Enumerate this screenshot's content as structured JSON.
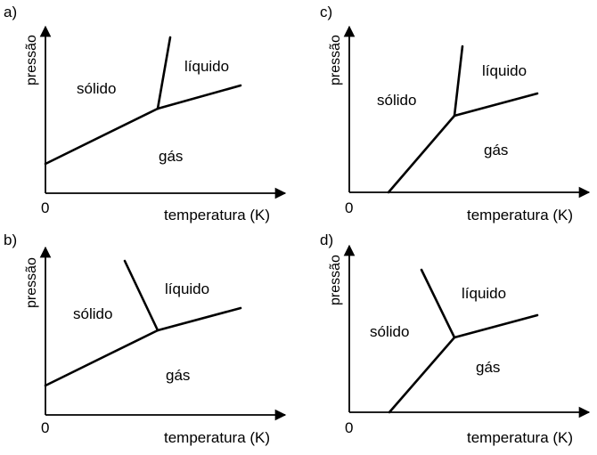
{
  "panels": [
    {
      "letter": "a)",
      "y_axis_label": "pressão",
      "x_axis_label": "temperatura (K)",
      "origin_label": "0",
      "regions": {
        "solid": "sólido",
        "liquid": "líquido",
        "gas": "gás"
      }
    },
    {
      "letter": "b)",
      "y_axis_label": "pressão",
      "x_axis_label": "temperatura (K)",
      "origin_label": "0",
      "regions": {
        "solid": "sólido",
        "liquid": "líquido",
        "gas": "gás"
      }
    },
    {
      "letter": "c)",
      "y_axis_label": "pressão",
      "x_axis_label": "temperatura (K)",
      "origin_label": "0",
      "regions": {
        "solid": "sólido",
        "liquid": "líquido",
        "gas": "gás"
      }
    },
    {
      "letter": "d)",
      "y_axis_label": "pressão",
      "x_axis_label": "temperatura (K)",
      "origin_label": "0",
      "regions": {
        "solid": "sólido",
        "liquid": "líquido",
        "gas": "gás"
      }
    }
  ]
}
